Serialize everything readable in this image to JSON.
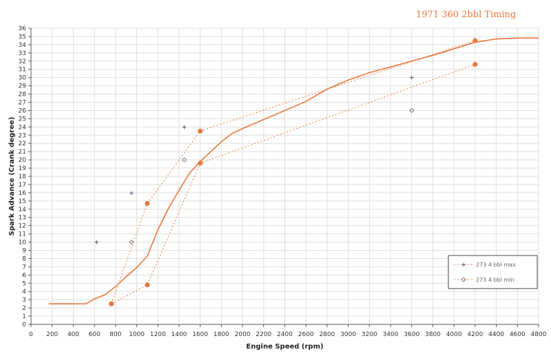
{
  "chart_data": {
    "type": "line",
    "title": "1971 360 2bbl Timing",
    "xlabel": "Engine Speed (rpm)",
    "ylabel": "Spark Advance (Crank degree)",
    "xlim": [
      0,
      4800
    ],
    "ylim": [
      0,
      36
    ],
    "x_ticks": [
      0,
      200,
      400,
      600,
      800,
      1000,
      1200,
      1400,
      1600,
      1800,
      2000,
      2200,
      2400,
      2600,
      2800,
      3000,
      3200,
      3400,
      3600,
      3800,
      4000,
      4200,
      4400,
      4600,
      4800
    ],
    "y_ticks": [
      0,
      1,
      2,
      3,
      4,
      5,
      6,
      7,
      8,
      9,
      10,
      11,
      12,
      13,
      14,
      15,
      16,
      17,
      18,
      19,
      20,
      21,
      22,
      23,
      24,
      25,
      26,
      27,
      28,
      29,
      30,
      31,
      32,
      33,
      34,
      35,
      36
    ],
    "grid": true,
    "legend_position": "bottom-right",
    "legend": [
      "273 4 bbl max",
      "273 4 bbl min"
    ],
    "colors": {
      "accent": "#e8763b",
      "axis": "#555555",
      "grid": "#dddddd",
      "dark": "#1a2a4a"
    },
    "series": [
      {
        "style": "solid",
        "x": [
          170,
          520,
          600,
          700,
          800,
          900,
          1000,
          1100,
          1200,
          1300,
          1400,
          1500,
          1600,
          1700,
          1800,
          1900,
          2000,
          2200,
          2400,
          2600,
          2800,
          3000,
          3200,
          3400,
          3600,
          3800,
          4000,
          4200,
          4400,
          4600,
          4800
        ],
        "y": [
          2.5,
          2.5,
          3.1,
          3.6,
          4.6,
          5.8,
          6.9,
          8.3,
          11.5,
          14.1,
          16.3,
          18.4,
          19.8,
          21.0,
          22.2,
          23.2,
          23.8,
          24.9,
          26.0,
          27.1,
          28.6,
          29.7,
          30.6,
          31.3,
          32.0,
          32.7,
          33.5,
          34.3,
          34.7,
          34.8,
          34.8
        ]
      },
      {
        "name": "273 4 bbl max",
        "style": "dotted",
        "x": [
          760,
          1100,
          1600,
          4200
        ],
        "y": [
          2.5,
          14.7,
          23.5,
          34.5
        ]
      },
      {
        "name": "273 4 bbl min",
        "style": "dotted",
        "x": [
          760,
          1100,
          1600,
          4200
        ],
        "y": [
          2.5,
          4.8,
          19.6,
          31.6
        ]
      }
    ],
    "extra_markers": [
      {
        "series": "273 4 bbl max",
        "x": [
          620,
          950,
          1450,
          3600
        ],
        "y": [
          10,
          16,
          24,
          30
        ]
      },
      {
        "series": "273 4 bbl min",
        "x": [
          950,
          1450,
          3600
        ],
        "y": [
          10,
          20,
          26
        ]
      }
    ]
  }
}
